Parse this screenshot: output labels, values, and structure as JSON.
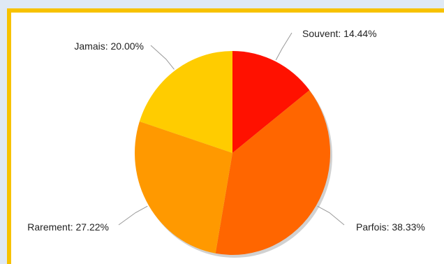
{
  "chart_data": {
    "type": "pie",
    "title": "",
    "slices": [
      {
        "name": "Souvent",
        "value": 14.44,
        "label": "Souvent: 14.44%",
        "color": "#ff1100"
      },
      {
        "name": "Parfois",
        "value": 38.33,
        "label": "Parfois: 38.33%",
        "color": "#ff6600"
      },
      {
        "name": "Rarement",
        "value": 27.22,
        "label": "Rarement: 27.22%",
        "color": "#ff9900"
      },
      {
        "name": "Jamais",
        "value": 20.0,
        "label": "Jamais: 20.00%",
        "color": "#ffcc00"
      }
    ],
    "colors": {
      "border": "#f7c200",
      "page_background": "#dfe9f5",
      "plot_background": "#ffffff",
      "leader_line": "#999999"
    }
  }
}
